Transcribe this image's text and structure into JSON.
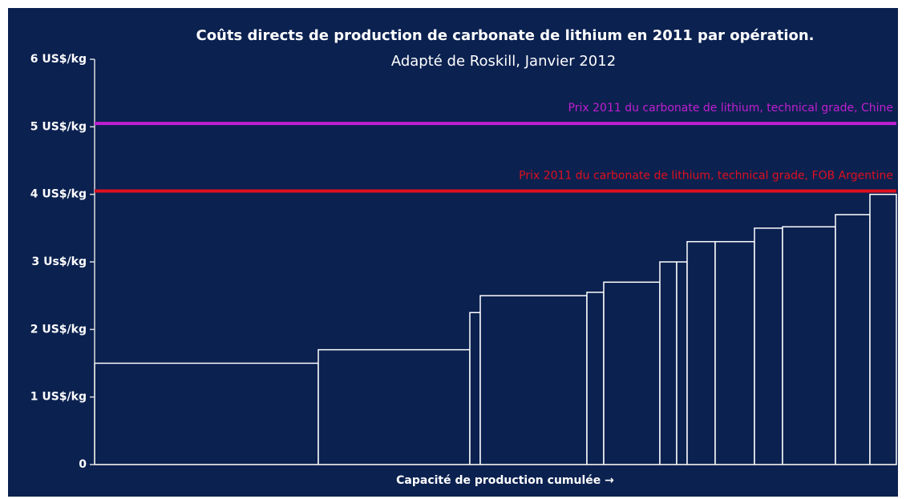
{
  "chart_data": {
    "type": "bar",
    "title": "Coûts directs de production de carbonate de lithium en 2011 par opération.",
    "subtitle": "Adapté de Roskill, Janvier 2012",
    "x_label": "Capacité de production cumulée →",
    "values": [
      1.5,
      1.7,
      2.25,
      2.5,
      2.55,
      2.7,
      3.0,
      3.0,
      3.3,
      3.3,
      3.5,
      3.52,
      3.7,
      4.0
    ],
    "widths": [
      279,
      189,
      13,
      133,
      21,
      70,
      21,
      13,
      35,
      49,
      35,
      66,
      43,
      33
    ],
    "color": "#0b2150",
    "edge_color": "#ffffff",
    "ylim": [
      0,
      6
    ],
    "yticks": [
      0,
      {
        "value": 1,
        "label": "1 US$/kg"
      },
      {
        "value": 2,
        "label": "2 US$/kg"
      },
      {
        "value": 3,
        "label": "3 Us$/kg"
      },
      {
        "value": 4,
        "label": "4 US$/kg"
      },
      {
        "value": 5,
        "label": "5 US$/kg"
      },
      {
        "value": 6,
        "label": "6 US$/kg"
      }
    ],
    "reference_lines": [
      {
        "label": "Prix 2011 du carbonate de lithium, technical grade, Chine",
        "value": 5.05,
        "color": "#c01fd0"
      },
      {
        "label": "Prix 2011 du carbonate de lithium, technical grade, FOB Argentine",
        "value": 4.05,
        "color": "#e01020"
      }
    ]
  }
}
